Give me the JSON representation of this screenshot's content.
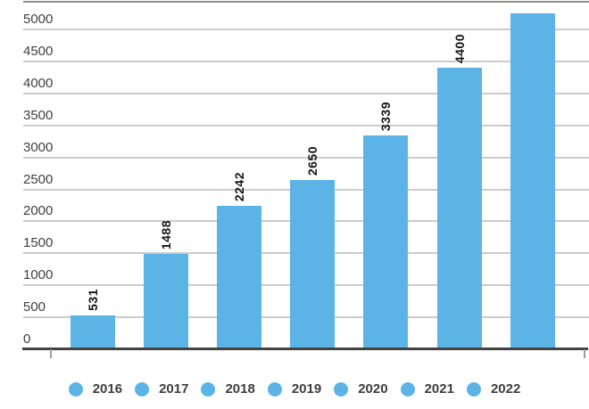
{
  "chart_data": {
    "type": "bar",
    "title": "",
    "xlabel": "",
    "ylabel": "",
    "categories": [
      "2016",
      "2017",
      "2018",
      "2019",
      "2020",
      "2021",
      "2022"
    ],
    "values": [
      531,
      1488,
      2242,
      2650,
      3339,
      4400,
      5250
    ],
    "data_labels": [
      "531",
      "1488",
      "2242",
      "2650",
      "3339",
      "4400",
      ""
    ],
    "ylim": [
      0,
      5430
    ],
    "yticks": [
      0,
      500,
      1000,
      1500,
      2000,
      2500,
      3000,
      3500,
      4000,
      4500,
      5000
    ],
    "ytick_labels": [
      "0",
      "500",
      "1000",
      "1500",
      "2000",
      "2500",
      "3000",
      "3500",
      "4000",
      "4500",
      "5000"
    ],
    "grid": true,
    "legend_position": "bottom",
    "legend_labels": [
      "2016",
      "2017",
      "2018",
      "2019",
      "2020",
      "2021",
      "2022"
    ],
    "colors": {
      "bar": "#5bb4e5",
      "gridline": "#cbcbcb",
      "top_border": "#8f8f8f",
      "axis_line": "#424242",
      "tick": "#9b9b9b",
      "ytick_text": "#404040",
      "data_label_text": "#141414",
      "legend_text": "#3d3d3d",
      "background": "#ffffff"
    }
  }
}
